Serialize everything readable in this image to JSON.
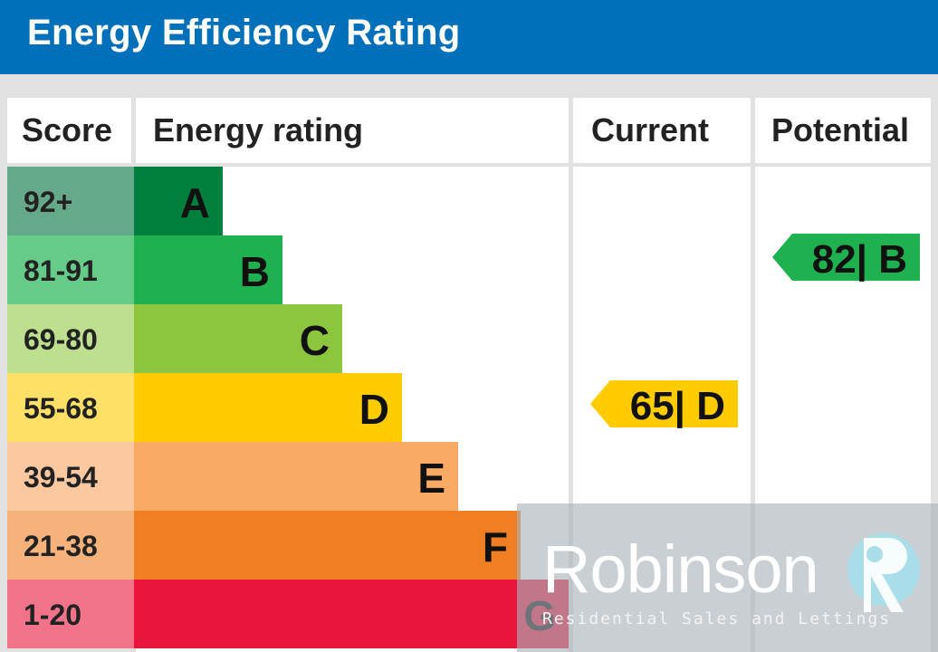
{
  "header": {
    "title": "Energy Efficiency Rating"
  },
  "columns": {
    "score": "Score",
    "rating": "Energy rating",
    "current": "Current",
    "potential": "Potential"
  },
  "chart_data": {
    "type": "bar",
    "title": "Energy Efficiency Rating",
    "categories": [
      "A",
      "B",
      "C",
      "D",
      "E",
      "F",
      "G"
    ],
    "score_ranges": [
      "92+",
      "81-91",
      "69-80",
      "55-68",
      "39-54",
      "21-38",
      "1-20"
    ],
    "band_colors": [
      "#007f3d",
      "#1fb04f",
      "#8cc63e",
      "#ffcc00",
      "#f8aa65",
      "#ef7f22",
      "#e9153b"
    ],
    "score_colors": [
      "#66a98a",
      "#66cb88",
      "#bddf8e",
      "#ffe066",
      "#fbc89f",
      "#f5b27a",
      "#f17389"
    ],
    "current": {
      "value": 65,
      "band": "D",
      "label": "65| D",
      "color": "#ffcc00"
    },
    "potential": {
      "value": 82,
      "band": "B",
      "label": "82| B",
      "color": "#1fb04f"
    }
  },
  "watermark": {
    "name": "Robinson",
    "tagline": "Residential Sales and Lettings"
  }
}
